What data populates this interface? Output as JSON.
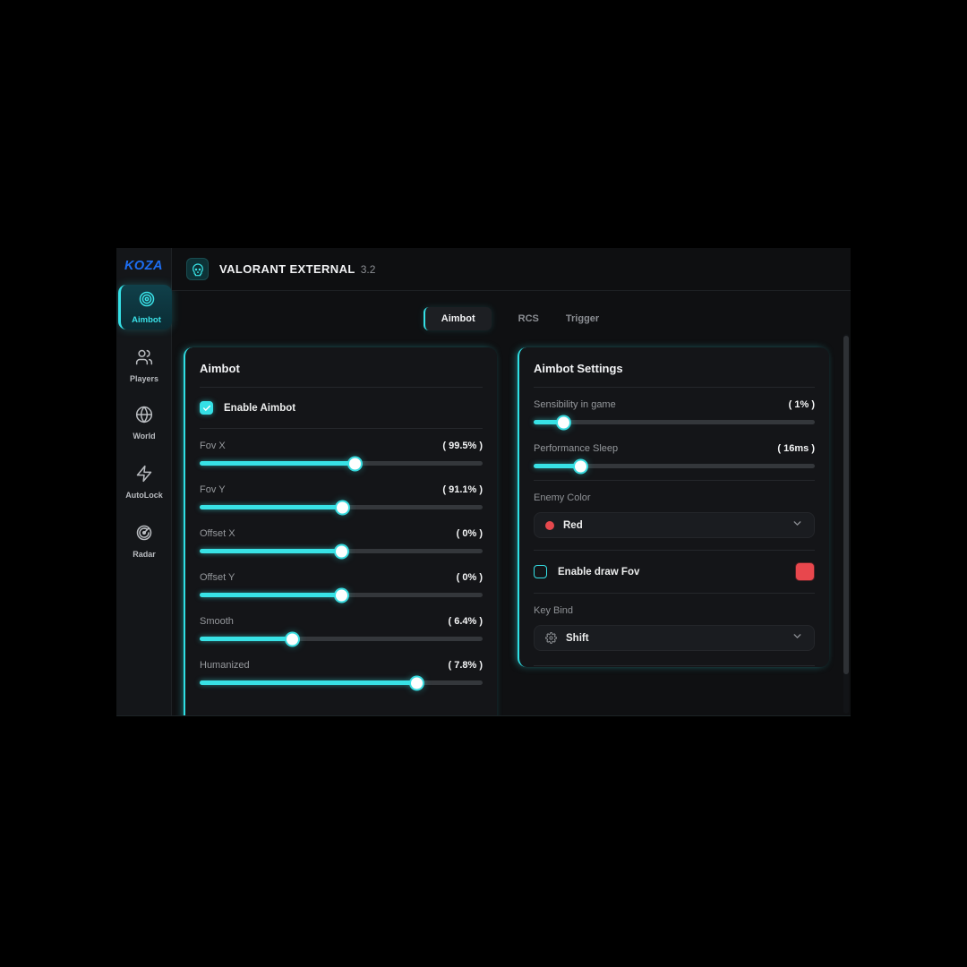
{
  "app": {
    "logo": "KOZA",
    "title": "VALORANT EXTERNAL",
    "version": "3.2"
  },
  "sidebar": {
    "items": [
      {
        "label": "Aimbot"
      },
      {
        "label": "Players"
      },
      {
        "label": "World"
      },
      {
        "label": "AutoLock"
      },
      {
        "label": "Radar"
      }
    ]
  },
  "tabs": [
    {
      "label": "Aimbot"
    },
    {
      "label": "RCS"
    },
    {
      "label": "Trigger"
    }
  ],
  "left_panel": {
    "title": "Aimbot",
    "toggle": {
      "label": "Enable Aimbot",
      "checked": true
    },
    "sliders": [
      {
        "label": "Fov X",
        "value": "( 99.5% )",
        "percent": 55
      },
      {
        "label": "Fov Y",
        "value": "( 91.1% )",
        "percent": 50.5
      },
      {
        "label": "Offset X",
        "value": "( 0% )",
        "percent": 50.3
      },
      {
        "label": "Offset Y",
        "value": "( 0% )",
        "percent": 50.3
      },
      {
        "label": "Smooth",
        "value": "( 6.4% )",
        "percent": 33
      },
      {
        "label": "Humanized",
        "value": "( 7.8% )",
        "percent": 77
      }
    ]
  },
  "right_panel": {
    "title": "Aimbot Settings",
    "sliders": [
      {
        "label": "Sensibility in game",
        "value": "( 1% )",
        "percent": 10.9
      },
      {
        "label": "Performance Sleep",
        "value": "( 16ms )",
        "percent": 16.8
      }
    ],
    "enemy_color": {
      "label": "Enemy Color",
      "selected": "Red",
      "dot_color": "#e5484d"
    },
    "draw_fov": {
      "label": "Enable draw Fov",
      "checked": false,
      "swatch_color": "#e8474d"
    },
    "key_bind": {
      "label": "Key Bind",
      "selected": "Shift"
    }
  },
  "colors": {
    "accent": "#35e0e6",
    "logo_blue": "#1d6ef2",
    "red": "#e5484d"
  }
}
